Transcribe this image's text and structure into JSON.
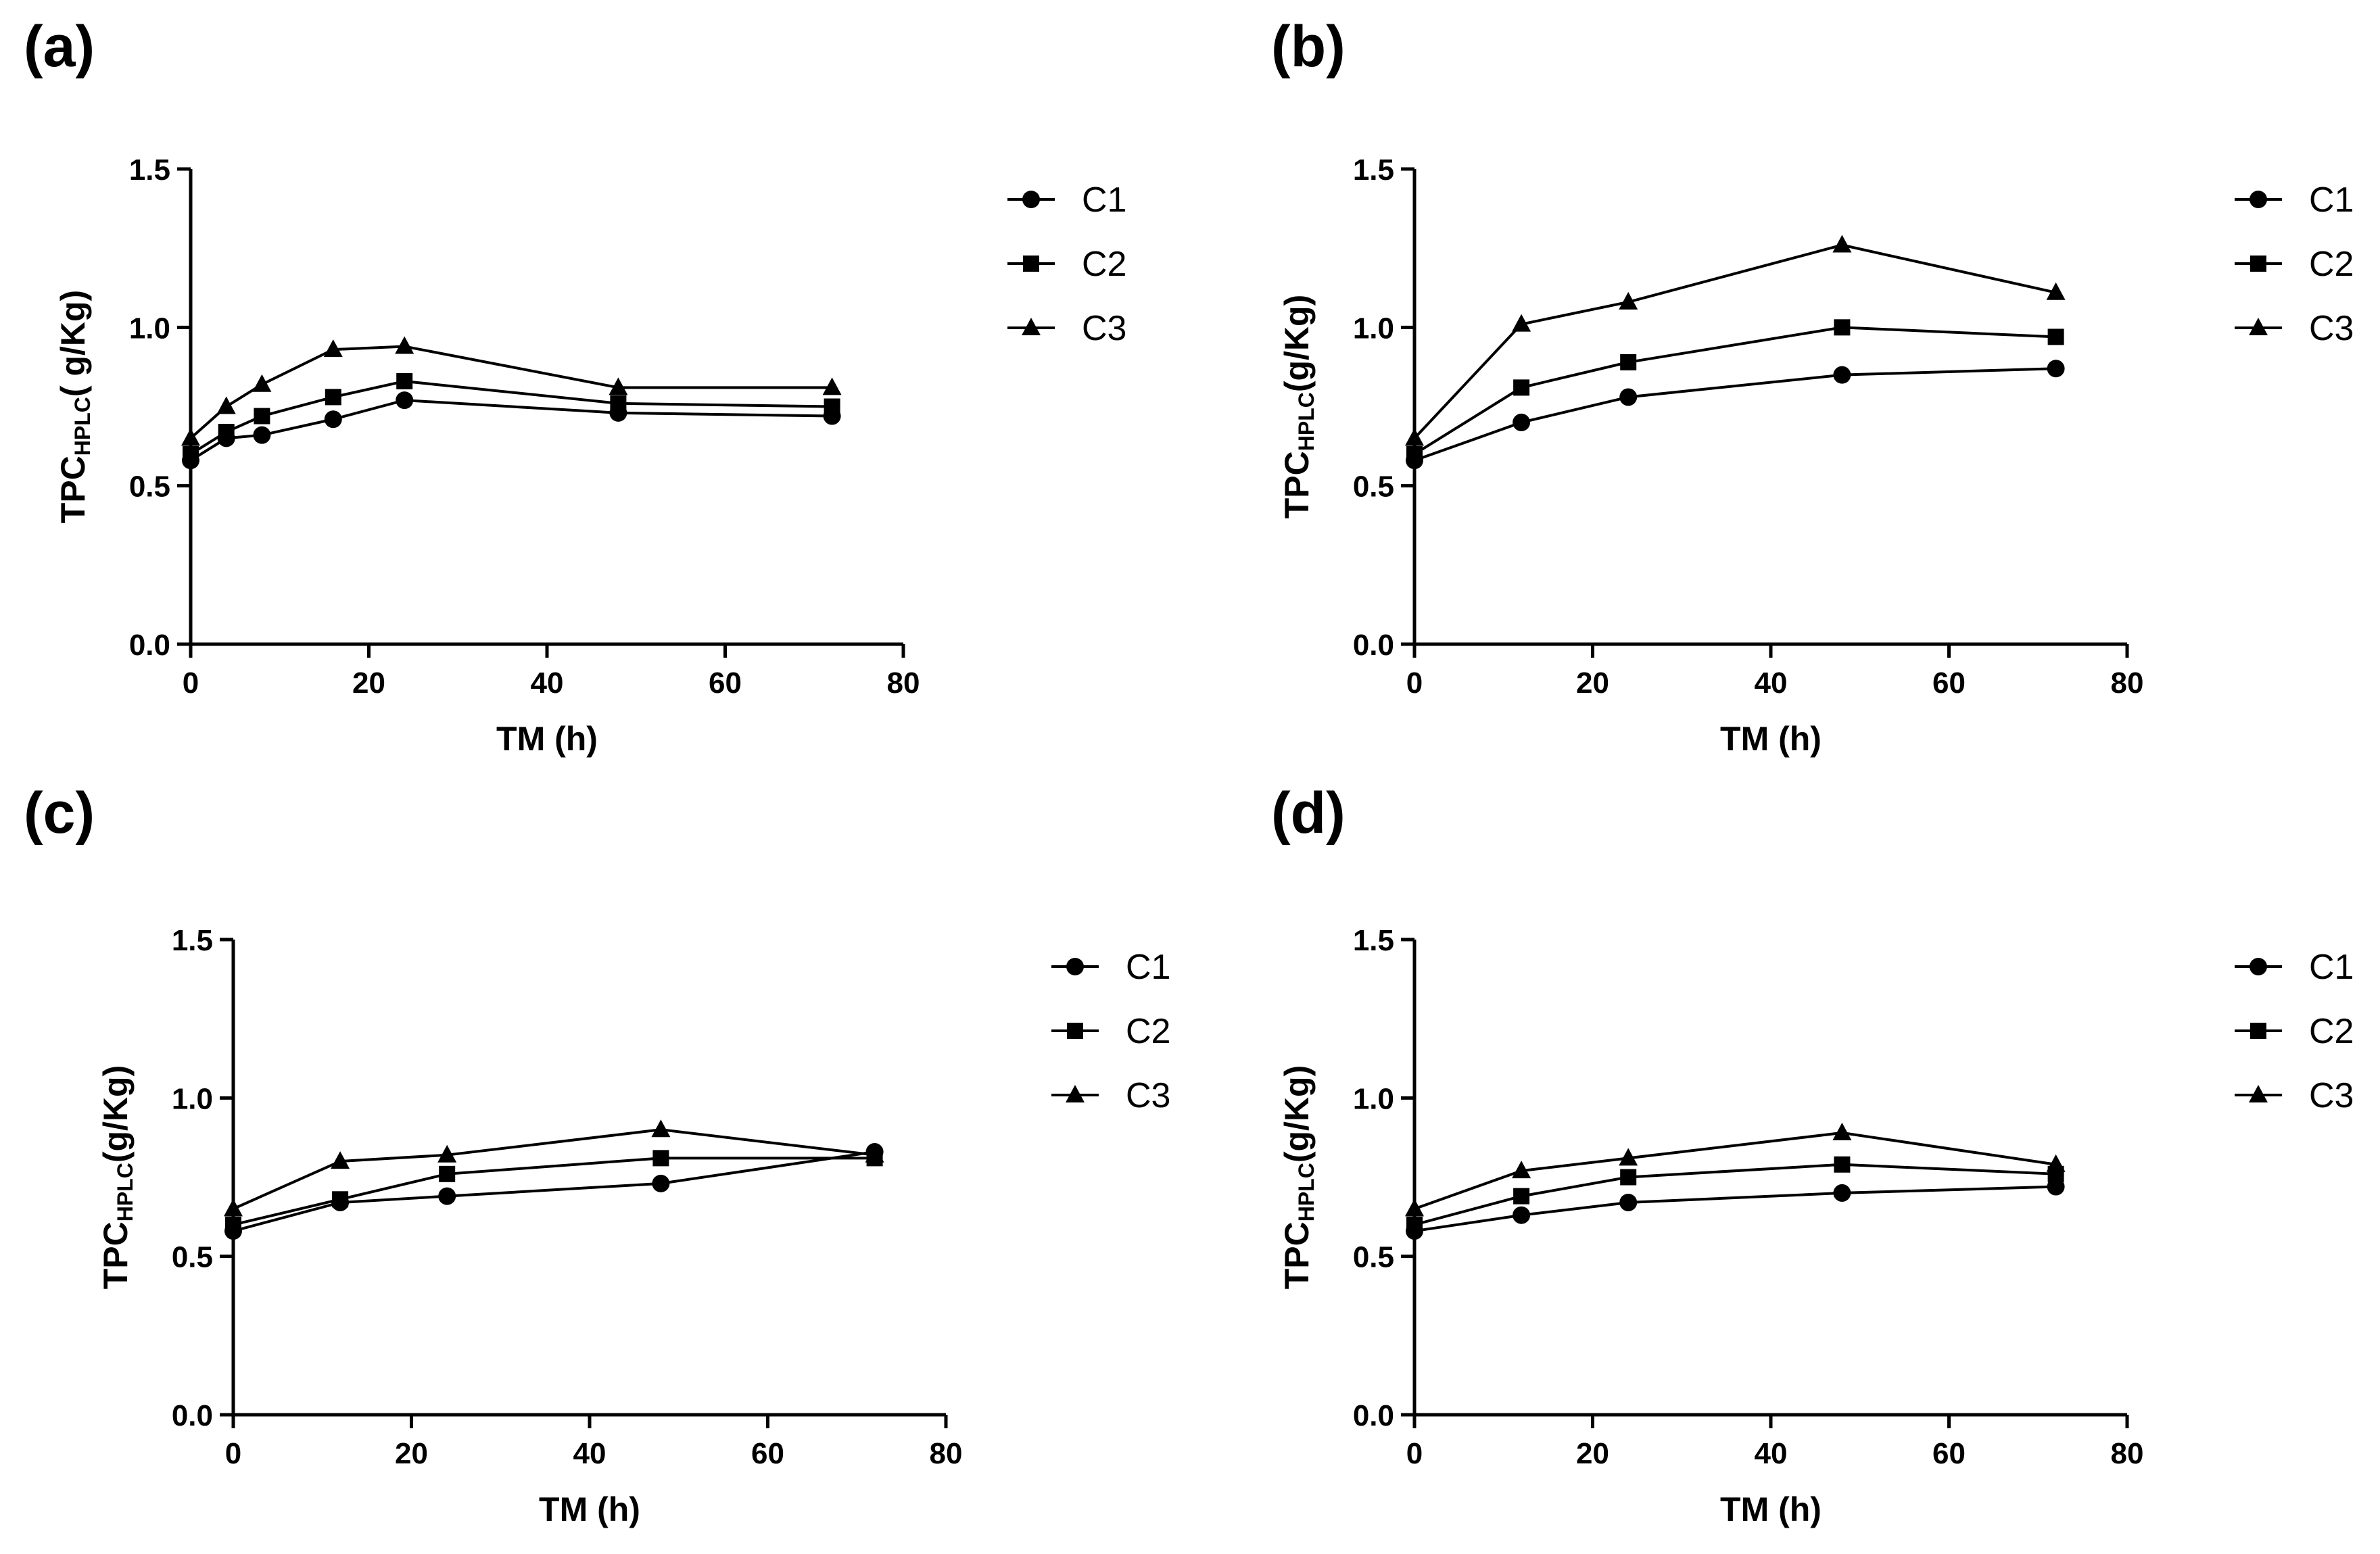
{
  "chart_data": [
    {
      "panel": "(a)",
      "type": "line",
      "xlabel": "TM (h)",
      "ylabel_main": "TPC",
      "ylabel_sub": "HPLC",
      "ylabel_rest": "( g/Kg)",
      "xlim": [
        0,
        80
      ],
      "ylim": [
        0,
        1.5
      ],
      "xticks": [
        0,
        20,
        40,
        60,
        80
      ],
      "yticks": [
        "0.0",
        "0.5",
        "1.0",
        "1.5"
      ],
      "series": [
        {
          "name": "C1",
          "marker": "circle",
          "x": [
            0,
            4,
            8,
            16,
            24,
            48,
            72
          ],
          "values": [
            0.58,
            0.65,
            0.66,
            0.71,
            0.77,
            0.73,
            0.72
          ]
        },
        {
          "name": "C2",
          "marker": "square",
          "x": [
            0,
            4,
            8,
            16,
            24,
            48,
            72
          ],
          "values": [
            0.6,
            0.67,
            0.72,
            0.78,
            0.83,
            0.76,
            0.75
          ]
        },
        {
          "name": "C3",
          "marker": "triangle",
          "x": [
            0,
            4,
            8,
            16,
            24,
            48,
            72
          ],
          "values": [
            0.65,
            0.75,
            0.82,
            0.93,
            0.94,
            0.81,
            0.81
          ]
        }
      ]
    },
    {
      "panel": "(b)",
      "type": "line",
      "xlabel": "TM (h)",
      "ylabel_main": "TPC",
      "ylabel_sub": "HPLC",
      "ylabel_rest": "(g/Kg)",
      "xlim": [
        0,
        80
      ],
      "ylim": [
        0,
        1.5
      ],
      "xticks": [
        0,
        20,
        40,
        60,
        80
      ],
      "yticks": [
        "0.0",
        "0.5",
        "1.0",
        "1.5"
      ],
      "series": [
        {
          "name": "C1",
          "marker": "circle",
          "x": [
            0,
            12,
            24,
            48,
            72
          ],
          "values": [
            0.58,
            0.7,
            0.78,
            0.85,
            0.87
          ]
        },
        {
          "name": "C2",
          "marker": "square",
          "x": [
            0,
            12,
            24,
            48,
            72
          ],
          "values": [
            0.6,
            0.81,
            0.89,
            1.0,
            0.97
          ]
        },
        {
          "name": "C3",
          "marker": "triangle",
          "x": [
            0,
            12,
            24,
            48,
            72
          ],
          "values": [
            0.65,
            1.01,
            1.08,
            1.26,
            1.11
          ]
        }
      ]
    },
    {
      "panel": "(c)",
      "type": "line",
      "xlabel": "TM (h)",
      "ylabel_main": "TPC",
      "ylabel_sub": "HPLC",
      "ylabel_rest": "(g/Kg)",
      "xlim": [
        0,
        80
      ],
      "ylim": [
        0,
        1.5
      ],
      "xticks": [
        0,
        20,
        40,
        60,
        80
      ],
      "yticks": [
        "0.0",
        "0.5",
        "1.0",
        "1.5"
      ],
      "series": [
        {
          "name": "C1",
          "marker": "circle",
          "x": [
            0,
            12,
            24,
            48,
            72
          ],
          "values": [
            0.58,
            0.67,
            0.69,
            0.73,
            0.83
          ]
        },
        {
          "name": "C2",
          "marker": "square",
          "x": [
            0,
            12,
            24,
            48,
            72
          ],
          "values": [
            0.6,
            0.68,
            0.76,
            0.81,
            0.81
          ]
        },
        {
          "name": "C3",
          "marker": "triangle",
          "x": [
            0,
            12,
            24,
            48,
            72
          ],
          "values": [
            0.65,
            0.8,
            0.82,
            0.9,
            0.82
          ]
        }
      ]
    },
    {
      "panel": "(d)",
      "type": "line",
      "xlabel": "TM (h)",
      "ylabel_main": "TPC",
      "ylabel_sub": "HPLC",
      "ylabel_rest": "(g/Kg)",
      "xlim": [
        0,
        80
      ],
      "ylim": [
        0,
        1.5
      ],
      "xticks": [
        0,
        20,
        40,
        60,
        80
      ],
      "yticks": [
        "0.0",
        "0.5",
        "1.0",
        "1.5"
      ],
      "series": [
        {
          "name": "C1",
          "marker": "circle",
          "x": [
            0,
            12,
            24,
            48,
            72
          ],
          "values": [
            0.58,
            0.63,
            0.67,
            0.7,
            0.72
          ]
        },
        {
          "name": "C2",
          "marker": "square",
          "x": [
            0,
            12,
            24,
            48,
            72
          ],
          "values": [
            0.6,
            0.69,
            0.75,
            0.79,
            0.76
          ]
        },
        {
          "name": "C3",
          "marker": "triangle",
          "x": [
            0,
            12,
            24,
            48,
            72
          ],
          "values": [
            0.65,
            0.77,
            0.81,
            0.89,
            0.79
          ]
        }
      ]
    }
  ]
}
